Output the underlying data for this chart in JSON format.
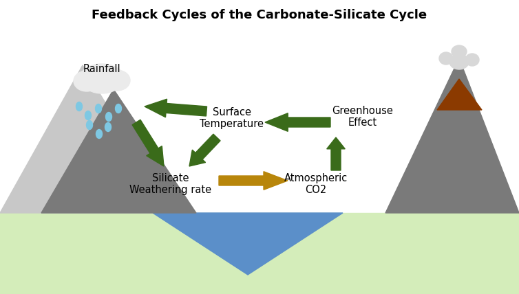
{
  "title": "Feedback Cycles of the Carbonate-Silicate Cycle",
  "background_color": "#ffffff",
  "ground_color": "#d4edba",
  "mountain_left_light": "#c8c8c8",
  "mountain_left_dark": "#7a7a7a",
  "mountain_right_color": "#7a7a7a",
  "volcano_crater_color": "#8b3a00",
  "volcano_smoke_color": "#d8d8d8",
  "lake_color": "#5b8fc9",
  "arrow_green": "#3a6b1a",
  "arrow_gold": "#b8860b",
  "rain_color": "#7ec8e3",
  "cloud_color": "#ebebeb",
  "labels": {
    "rainfall": "Rainfall",
    "surface_temp": "Surface\nTemperature",
    "greenhouse": "Greenhouse\nEffect",
    "silicate": "Silicate\nWeathering rate",
    "atm_co2": "Atmospheric\nCO2"
  },
  "title_fontsize": 13,
  "label_fontsize": 10.5
}
